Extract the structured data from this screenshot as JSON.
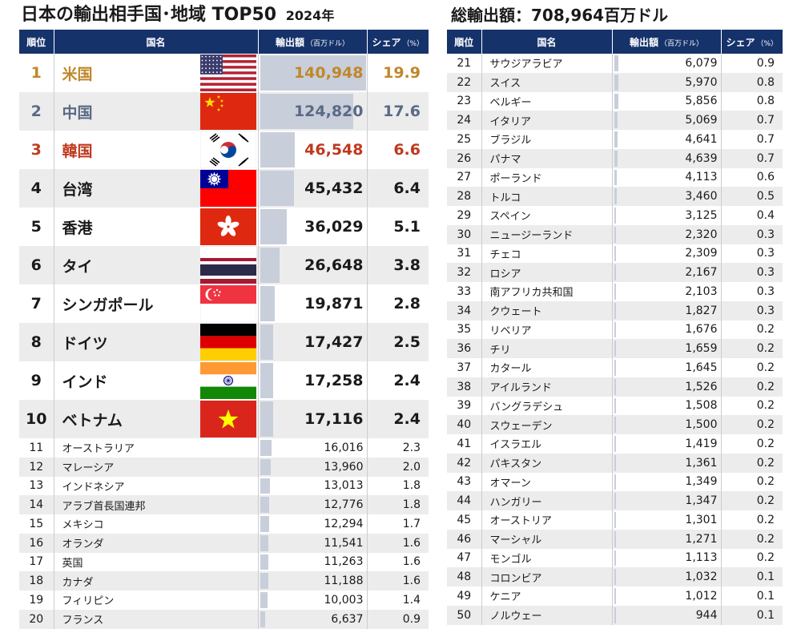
{
  "header": {
    "title_left": "日本の輸出相手国･地域 TOP50",
    "title_year": "2024年",
    "total_label": "総輸出額：708,964百万ドル"
  },
  "columns": {
    "rank": "順位",
    "country": "国名",
    "value": "輸出額",
    "value_unit": "（百万ドル）",
    "share": "シェア",
    "share_unit": "（%）"
  },
  "colors": {
    "header_bg": "#16326b",
    "bar": "#c8ceda",
    "rank1": "#c0872a",
    "rank2": "#5a6a86",
    "rank3": "#c0391e",
    "row_stripe": "#ececec"
  },
  "chart_data": {
    "type": "table",
    "title": "日本の輸出相手国･地域 TOP50",
    "subtitle": "2024年",
    "rows": [
      {
        "rank": "1",
        "country": "米国",
        "value": "140,948",
        "share": "19.9",
        "flag": "usa-flag"
      },
      {
        "rank": "2",
        "country": "中国",
        "value": "124,820",
        "share": "17.6",
        "flag": "china-flag"
      },
      {
        "rank": "3",
        "country": "韓国",
        "value": "46,548",
        "share": "6.6",
        "flag": "korea-flag"
      },
      {
        "rank": "4",
        "country": "台湾",
        "value": "45,432",
        "share": "6.4",
        "flag": "taiwan-flag"
      },
      {
        "rank": "5",
        "country": "香港",
        "value": "36,029",
        "share": "5.1",
        "flag": "hongkong-flag"
      },
      {
        "rank": "6",
        "country": "タイ",
        "value": "26,648",
        "share": "3.8",
        "flag": "thailand-flag"
      },
      {
        "rank": "7",
        "country": "シンガポール",
        "value": "19,871",
        "share": "2.8",
        "flag": "singapore-flag"
      },
      {
        "rank": "8",
        "country": "ドイツ",
        "value": "17,427",
        "share": "2.5",
        "flag": "germany-flag"
      },
      {
        "rank": "9",
        "country": "インド",
        "value": "17,258",
        "share": "2.4",
        "flag": "india-flag"
      },
      {
        "rank": "10",
        "country": "ベトナム",
        "value": "17,116",
        "share": "2.4",
        "flag": "vietnam-flag"
      },
      {
        "rank": "11",
        "country": "オーストラリア",
        "value": "16,016",
        "share": "2.3"
      },
      {
        "rank": "12",
        "country": "マレーシア",
        "value": "13,960",
        "share": "2.0"
      },
      {
        "rank": "13",
        "country": "インドネシア",
        "value": "13,013",
        "share": "1.8"
      },
      {
        "rank": "14",
        "country": "アラブ首長国連邦",
        "value": "12,776",
        "share": "1.8"
      },
      {
        "rank": "15",
        "country": "メキシコ",
        "value": "12,294",
        "share": "1.7"
      },
      {
        "rank": "16",
        "country": "オランダ",
        "value": "11,541",
        "share": "1.6"
      },
      {
        "rank": "17",
        "country": "英国",
        "value": "11,263",
        "share": "1.6"
      },
      {
        "rank": "18",
        "country": "カナダ",
        "value": "11,188",
        "share": "1.6"
      },
      {
        "rank": "19",
        "country": "フィリピン",
        "value": "10,003",
        "share": "1.4"
      },
      {
        "rank": "20",
        "country": "フランス",
        "value": "6,637",
        "share": "0.9"
      },
      {
        "rank": "21",
        "country": "サウジアラビア",
        "value": "6,079",
        "share": "0.9"
      },
      {
        "rank": "22",
        "country": "スイス",
        "value": "5,970",
        "share": "0.8"
      },
      {
        "rank": "23",
        "country": "ベルギー",
        "value": "5,856",
        "share": "0.8"
      },
      {
        "rank": "24",
        "country": "イタリア",
        "value": "5,069",
        "share": "0.7"
      },
      {
        "rank": "25",
        "country": "ブラジル",
        "value": "4,641",
        "share": "0.7"
      },
      {
        "rank": "26",
        "country": "パナマ",
        "value": "4,639",
        "share": "0.7"
      },
      {
        "rank": "27",
        "country": "ポーランド",
        "value": "4,113",
        "share": "0.6"
      },
      {
        "rank": "28",
        "country": "トルコ",
        "value": "3,460",
        "share": "0.5"
      },
      {
        "rank": "29",
        "country": "スペイン",
        "value": "3,125",
        "share": "0.4"
      },
      {
        "rank": "30",
        "country": "ニュージーランド",
        "value": "2,320",
        "share": "0.3"
      },
      {
        "rank": "31",
        "country": "チェコ",
        "value": "2,309",
        "share": "0.3"
      },
      {
        "rank": "32",
        "country": "ロシア",
        "value": "2,167",
        "share": "0.3"
      },
      {
        "rank": "33",
        "country": "南アフリカ共和国",
        "value": "2,103",
        "share": "0.3"
      },
      {
        "rank": "34",
        "country": "クウェート",
        "value": "1,827",
        "share": "0.3"
      },
      {
        "rank": "35",
        "country": "リベリア",
        "value": "1,676",
        "share": "0.2"
      },
      {
        "rank": "36",
        "country": "チリ",
        "value": "1,659",
        "share": "0.2"
      },
      {
        "rank": "37",
        "country": "カタール",
        "value": "1,645",
        "share": "0.2"
      },
      {
        "rank": "38",
        "country": "アイルランド",
        "value": "1,526",
        "share": "0.2"
      },
      {
        "rank": "39",
        "country": "バングラデシュ",
        "value": "1,508",
        "share": "0.2"
      },
      {
        "rank": "40",
        "country": "スウェーデン",
        "value": "1,500",
        "share": "0.2"
      },
      {
        "rank": "41",
        "country": "イスラエル",
        "value": "1,419",
        "share": "0.2"
      },
      {
        "rank": "42",
        "country": "パキスタン",
        "value": "1,361",
        "share": "0.2"
      },
      {
        "rank": "43",
        "country": "オマーン",
        "value": "1,349",
        "share": "0.2"
      },
      {
        "rank": "44",
        "country": "ハンガリー",
        "value": "1,347",
        "share": "0.2"
      },
      {
        "rank": "45",
        "country": "オーストリア",
        "value": "1,301",
        "share": "0.2"
      },
      {
        "rank": "46",
        "country": "マーシャル",
        "value": "1,271",
        "share": "0.2"
      },
      {
        "rank": "47",
        "country": "モンゴル",
        "value": "1,113",
        "share": "0.2"
      },
      {
        "rank": "48",
        "country": "コロンビア",
        "value": "1,032",
        "share": "0.1"
      },
      {
        "rank": "49",
        "country": "ケニア",
        "value": "1,012",
        "share": "0.1"
      },
      {
        "rank": "50",
        "country": "ノルウェー",
        "value": "944",
        "share": "0.1"
      }
    ]
  }
}
